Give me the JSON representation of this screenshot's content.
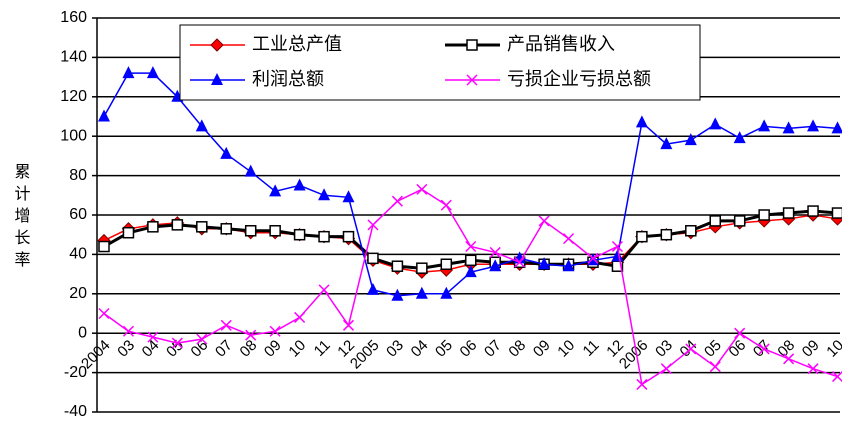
{
  "chart_data": {
    "type": "line",
    "y_label": "累计增长率",
    "categories": [
      "2004",
      "03",
      "04",
      "05",
      "06",
      "07",
      "08",
      "09",
      "10",
      "11",
      "12",
      "2005",
      "03",
      "04",
      "05",
      "06",
      "07",
      "08",
      "09",
      "10",
      "11",
      "12",
      "2006",
      "03",
      "04",
      "05",
      "06",
      "07",
      "08",
      "09",
      "10"
    ],
    "series": [
      {
        "name": "工业总产值",
        "color": "#ff0000",
        "marker": "diamond",
        "values": [
          47,
          53,
          55,
          56,
          53,
          53,
          51,
          51,
          50,
          49,
          48,
          37,
          33,
          31,
          32,
          35,
          35,
          35,
          35,
          35,
          35,
          36,
          49,
          50,
          51,
          54,
          56,
          57,
          58,
          60,
          58
        ]
      },
      {
        "name": "产品销售收入",
        "color": "#000000",
        "marker": "square",
        "values": [
          44,
          51,
          54,
          55,
          54,
          53,
          52,
          52,
          50,
          49,
          49,
          38,
          34,
          33,
          35,
          37,
          36,
          36,
          35,
          35,
          36,
          34,
          49,
          50,
          52,
          57,
          57,
          60,
          61,
          62,
          61
        ]
      },
      {
        "name": "利润总额",
        "color": "#0000ff",
        "marker": "triangle",
        "values": [
          110,
          132,
          132,
          120,
          105,
          91,
          82,
          72,
          75,
          70,
          69,
          22,
          19,
          20,
          20,
          31,
          34,
          38,
          35,
          34,
          37,
          39,
          107,
          96,
          98,
          106,
          99,
          105,
          104,
          105,
          104
        ]
      },
      {
        "name": "亏损企业亏损总额",
        "color": "#ff00ff",
        "marker": "x",
        "values": [
          10,
          1,
          -2,
          -5,
          -3,
          4,
          -1,
          1,
          8,
          22,
          4,
          55,
          67,
          73,
          65,
          44,
          41,
          36,
          57,
          48,
          38,
          44,
          -26,
          -18,
          -8,
          -17,
          0,
          -8,
          -13,
          -18,
          -22
        ]
      }
    ],
    "ylim": [
      -40,
      160
    ],
    "yticks": [
      -40,
      -20,
      0,
      20,
      40,
      60,
      80,
      100,
      120,
      140,
      160
    ],
    "grid": true
  }
}
